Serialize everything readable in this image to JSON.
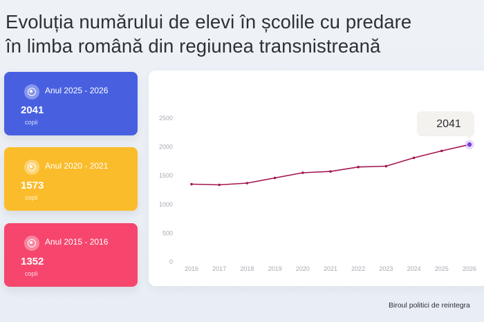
{
  "title": {
    "line1": "Evoluția numărului de elevi în școlile cu predare",
    "line2": "în limba română din regiunea transnistreană"
  },
  "cards": [
    {
      "period": "Anul 2025 - 2026",
      "value": "2041",
      "unit": "copii",
      "color": "#4860e0"
    },
    {
      "period": "Anul 2020 - 2021",
      "value": "1573",
      "unit": "copii",
      "color": "#fbbc2b"
    },
    {
      "period": "Anul 2015 - 2016",
      "value": "1352",
      "unit": "copii",
      "color": "#f6466e"
    }
  ],
  "footer": "Biroul politici de reintegra",
  "chart_data": {
    "type": "line",
    "x": [
      "2016",
      "2017",
      "2018",
      "2019",
      "2020",
      "2021",
      "2022",
      "2023",
      "2024",
      "2025",
      "2026"
    ],
    "values": [
      1352,
      1340,
      1370,
      1460,
      1550,
      1573,
      1650,
      1665,
      1810,
      1930,
      2041
    ],
    "yticks": [
      0,
      500,
      1000,
      1500,
      2000,
      2500
    ],
    "ylim": [
      0,
      2500
    ],
    "line_color": "#a3154f",
    "highlight": {
      "label": "2041",
      "color": "#7b3fe4"
    },
    "grid": false
  }
}
